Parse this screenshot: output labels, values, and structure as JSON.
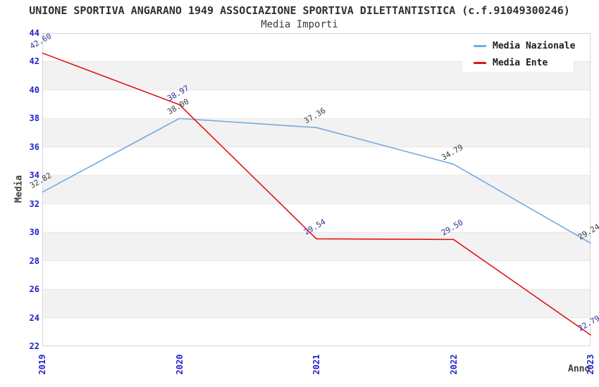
{
  "header": {
    "title": "UNIONE SPORTIVA ANGARANO 1949 ASSOCIAZIONE SPORTIVA DILETTANTISTICA (c.f.91049300246)",
    "subtitle": "Media Importi"
  },
  "axes": {
    "x_label": "Anno",
    "y_label": "Media",
    "x_tick_labels": [
      "2019",
      "2020",
      "2021",
      "2022",
      "2023"
    ],
    "y_tick_labels": [
      "22",
      "24",
      "26",
      "28",
      "30",
      "32",
      "34",
      "36",
      "38",
      "40",
      "42",
      "44"
    ]
  },
  "legend": {
    "items": [
      {
        "label": "Media Nazionale"
      },
      {
        "label": "Media Ente"
      }
    ]
  },
  "colors": {
    "axis_text": "#2323cc",
    "band_gray": "#f2f2f2",
    "band_white": "#ffffff",
    "grid_line": "#e7e7e7",
    "plot_border": "#d6d6d6",
    "nazionale_line": "#76a9e0",
    "ente_line": "#dd1717",
    "nazionale_value_text": "#3d3d3d",
    "ente_value_text": "#333399"
  },
  "chart_data": {
    "type": "line",
    "title": "UNIONE SPORTIVA ANGARANO 1949 ASSOCIAZIONE SPORTIVA DILETTANTISTICA (c.f.91049300246)",
    "subtitle": "Media Importi",
    "xlabel": "Anno",
    "ylabel": "Media",
    "x": [
      2019,
      2020,
      2021,
      2022,
      2023
    ],
    "series": [
      {
        "name": "Media Nazionale",
        "values": [
          32.82,
          38.0,
          37.36,
          34.79,
          29.24
        ],
        "color": "#76a9e0",
        "label_color": "#3d3d3d"
      },
      {
        "name": "Media Ente",
        "values": [
          42.6,
          38.97,
          29.54,
          29.5,
          22.79
        ],
        "color": "#dd1717",
        "label_color": "#333399"
      }
    ],
    "ylim": [
      22,
      44
    ],
    "ytick_step": 2,
    "grid": "horizontal-alternating-bands",
    "legend_position": "top-right",
    "point_labels_decimals": 2
  }
}
